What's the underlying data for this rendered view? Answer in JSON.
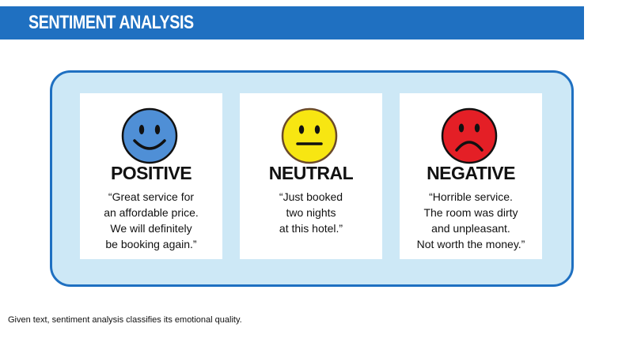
{
  "header": {
    "title": "SENTIMENT ANALYSIS"
  },
  "cards": [
    {
      "label": "POSITIVE",
      "face_color": "#4f8fd6",
      "icon": "smiley-face-icon",
      "quote_lines": [
        "“Great service for",
        "an affordable price.",
        "We will definitely",
        "be booking again.”"
      ]
    },
    {
      "label": "NEUTRAL",
      "face_color": "#f7e612",
      "icon": "neutral-face-icon",
      "quote_lines": [
        "“Just booked",
        "two nights",
        "at this hotel.”"
      ]
    },
    {
      "label": "NEGATIVE",
      "face_color": "#e41f26",
      "icon": "frowning-face-icon",
      "quote_lines": [
        "“Horrible service.",
        "The room was dirty",
        "and unpleasant.",
        "Not worth the money.”"
      ]
    }
  ],
  "caption": "Given text, sentiment analysis classifies its emotional quality."
}
